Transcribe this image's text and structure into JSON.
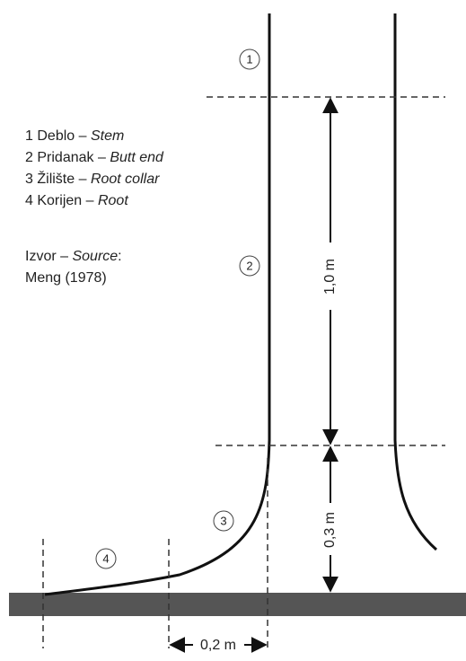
{
  "legend": [
    {
      "number": "1",
      "term": "Deblo –",
      "translation": "Stem"
    },
    {
      "number": "2",
      "term": "Pridanak –",
      "translation": "Butt end"
    },
    {
      "number": "3",
      "term": "Žilište –",
      "translation": "Root collar"
    },
    {
      "number": "4",
      "term": "Korijen –",
      "translation": "Root"
    }
  ],
  "source": {
    "label": "Izvor –",
    "translation": "Source",
    "suffix": ":",
    "reference": "Meng (1978)"
  },
  "markers": [
    "1",
    "2",
    "3",
    "4"
  ],
  "dimensions": {
    "butt_length": "1,0 m",
    "collar_height": "0,3 m",
    "collar_width": "0,2 m"
  }
}
